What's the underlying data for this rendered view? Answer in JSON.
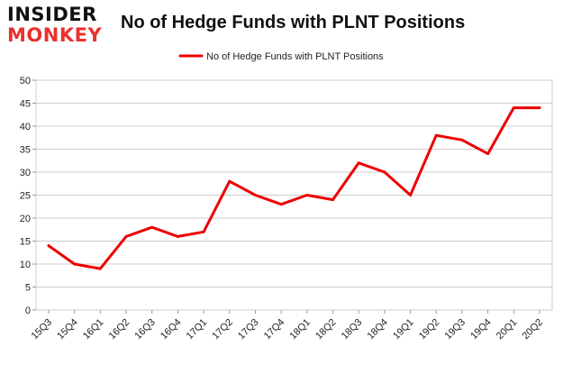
{
  "logo": {
    "line1": "INSIDER",
    "line2": "MONKEY"
  },
  "chart_data": {
    "type": "line",
    "title": "No of Hedge Funds with PLNT Positions",
    "categories": [
      "15Q3",
      "15Q4",
      "16Q1",
      "16Q2",
      "16Q3",
      "16Q4",
      "17Q1",
      "17Q2",
      "17Q3",
      "17Q4",
      "18Q1",
      "18Q2",
      "18Q3",
      "18Q4",
      "19Q1",
      "19Q2",
      "19Q3",
      "19Q4",
      "20Q1",
      "20Q2"
    ],
    "series": [
      {
        "name": "No of Hedge Funds with PLNT Positions",
        "color": "#ee0000",
        "values": [
          14,
          10,
          9,
          16,
          18,
          16,
          17,
          28,
          25,
          23,
          25,
          24,
          32,
          30,
          25,
          38,
          37,
          34,
          44,
          44
        ]
      }
    ],
    "ylim": [
      0,
      50
    ],
    "yticks": [
      0,
      5,
      10,
      15,
      20,
      25,
      30,
      35,
      40,
      45,
      50
    ],
    "grid": true,
    "legend_position": "top-center",
    "xlabel": "",
    "ylabel": ""
  }
}
